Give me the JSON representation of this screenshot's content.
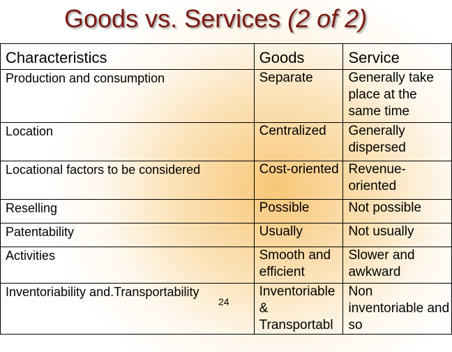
{
  "slide": {
    "title_main": "Goods vs. Services ",
    "title_suffix": "(2 of 2)",
    "page_number": "24"
  },
  "table": {
    "headers": [
      "Characteristics",
      "Goods",
      "Service"
    ],
    "rows": [
      [
        "Production and consumption",
        "Separate",
        "Generally take place at the same time"
      ],
      [
        "Location",
        "Centralized",
        "Generally dispersed"
      ],
      [
        "Locational factors to be considered",
        "Cost-oriented",
        "Revenue-oriented"
      ],
      [
        "Reselling",
        "Possible",
        "Not possible"
      ],
      [
        "Patentability",
        "Usually",
        "Not usually"
      ],
      [
        "Activities",
        "Smooth and efficient",
        "Slower and awkward"
      ],
      [
        "Inventoriability and.Transportability",
        "Inventoriable & Transportabl",
        "Non inventoriable and so"
      ]
    ]
  }
}
